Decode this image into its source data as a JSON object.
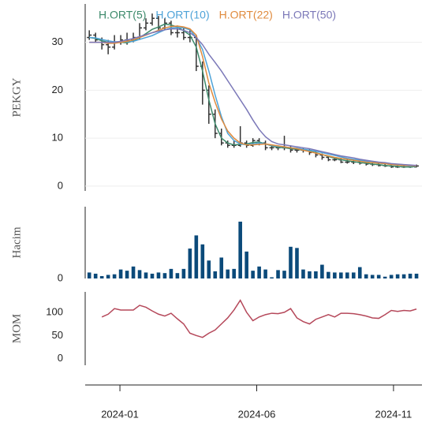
{
  "chart_data": [
    {
      "type": "ohlc",
      "ylabel": "PEKGY",
      "ylim": [
        -1,
        38
      ],
      "yticks": [
        0,
        10,
        20,
        30
      ],
      "grid": true,
      "legend": "top",
      "ohlc_color": "#333333",
      "open": [
        31,
        31.5,
        30.5,
        29.5,
        29,
        30,
        30.5,
        30.5,
        31,
        33,
        34,
        35,
        33,
        34,
        32,
        32,
        31,
        31,
        25,
        20,
        15,
        11,
        9,
        8.5,
        8.5,
        9,
        8.5,
        9.5,
        9,
        8,
        8,
        8,
        8,
        7.5,
        7.5,
        7.5,
        7,
        6.5,
        6,
        5.5,
        5.5,
        5,
        5,
        5,
        4.8,
        4.6,
        4.5,
        4.3,
        4.2,
        4,
        4,
        4,
        4
      ],
      "high": [
        32.5,
        32,
        31,
        30.5,
        31.5,
        31.5,
        32,
        32,
        34,
        35,
        36,
        35.5,
        35,
        34.5,
        33.5,
        33,
        32.5,
        31.5,
        26,
        21,
        16,
        12,
        9.5,
        9.5,
        12.5,
        9.5,
        10,
        10,
        9.5,
        8.5,
        8.5,
        10.5,
        8.5,
        8,
        8,
        7.8,
        7.2,
        6.8,
        6.2,
        6,
        5.8,
        5.5,
        5.4,
        5.2,
        5,
        4.9,
        4.8,
        4.6,
        4.5,
        4.3,
        4.3,
        4.3,
        4.5
      ],
      "low": [
        30.5,
        30,
        28.5,
        27.5,
        28.5,
        29.5,
        29.5,
        30,
        30.5,
        32.5,
        33.5,
        32.5,
        32.5,
        31.5,
        31,
        30.5,
        30,
        24,
        17,
        13,
        10,
        8.5,
        8,
        8,
        8.2,
        8,
        8.2,
        8.5,
        7.5,
        7.5,
        7.5,
        7.5,
        7,
        7,
        7,
        6.5,
        6,
        5.5,
        5.2,
        5.2,
        4.8,
        4.7,
        4.6,
        4.5,
        4.3,
        4.2,
        4.1,
        4,
        3.8,
        3.8,
        3.8,
        3.8,
        3.9
      ],
      "close": [
        31.5,
        30.5,
        29.5,
        29,
        30,
        30.5,
        30.5,
        31,
        33,
        34,
        35,
        33,
        34,
        32,
        32,
        31,
        31,
        25,
        20,
        15,
        11,
        9,
        8.5,
        8.5,
        9,
        8.5,
        9.5,
        9,
        8,
        8,
        8,
        8,
        7.5,
        7.5,
        7.5,
        7,
        6.5,
        6,
        5.5,
        5.5,
        5,
        5,
        5,
        4.8,
        4.6,
        4.5,
        4.3,
        4.2,
        4,
        4,
        4,
        4,
        4.2
      ],
      "series": [
        {
          "name": "H.ORT(5)",
          "color": "#3d8a6b",
          "values": [
            31,
            30.8,
            30.3,
            30,
            30,
            30,
            29.9,
            30.3,
            31,
            31.8,
            32.7,
            33.2,
            33.8,
            33.6,
            33.2,
            32.4,
            31.5,
            29,
            24,
            18,
            13,
            10,
            9,
            8.6,
            8.7,
            8.8,
            9.1,
            9.2,
            8.8,
            8.4,
            8.1,
            8,
            7.8,
            7.7,
            7.5,
            7.3,
            7,
            6.6,
            6.2,
            5.8,
            5.5,
            5.3,
            5.1,
            4.9,
            4.8,
            4.6,
            4.5,
            4.3,
            4.2,
            4.1,
            4,
            4,
            4.1
          ]
        },
        {
          "name": "H.ORT(10)",
          "color": "#4ea3d8",
          "values": [
            31,
            30.9,
            30.6,
            30.3,
            30.1,
            30.1,
            30.1,
            30.2,
            30.6,
            31,
            31.4,
            32,
            32.6,
            33,
            33.1,
            33,
            32.6,
            31,
            28.5,
            24,
            19,
            14.5,
            11,
            9.5,
            8.8,
            8.6,
            8.8,
            9,
            8.8,
            8.5,
            8.3,
            8.2,
            8,
            7.9,
            7.7,
            7.5,
            7.3,
            7,
            6.7,
            6.4,
            6.1,
            5.8,
            5.6,
            5.4,
            5.2,
            5,
            4.8,
            4.7,
            4.5,
            4.4,
            4.3,
            4.2,
            4.2
          ]
        },
        {
          "name": "H.ORT(22)",
          "color": "#e08b3e",
          "values": [
            30,
            30,
            30,
            29.8,
            29.8,
            30,
            30.2,
            30.5,
            31,
            31.5,
            32,
            32.5,
            33,
            33.3,
            33.4,
            33.2,
            32.8,
            31.5,
            27,
            21.5,
            17.5,
            14,
            11.5,
            10,
            9,
            8.6,
            8.6,
            8.7,
            8.8,
            8.6,
            8.4,
            8.2,
            8,
            7.8,
            7.5,
            7.2,
            6.9,
            6.6,
            6.3,
            6,
            5.8,
            5.6,
            5.4,
            5.2,
            5,
            4.9,
            4.8,
            4.7,
            4.5,
            4.4,
            4.3,
            4.3,
            4.2
          ]
        },
        {
          "name": "H.ORT(50)",
          "color": "#7b78b8",
          "values": [
            30,
            30,
            30,
            30,
            30,
            30.2,
            30.5,
            30.8,
            31.2,
            31.6,
            32,
            32.3,
            32.6,
            32.8,
            32.8,
            32.5,
            32,
            31,
            29.5,
            27.5,
            25.8,
            24,
            22,
            20,
            18,
            16,
            13.8,
            11.8,
            10.3,
            9.3,
            8.8,
            8.6,
            8.4,
            8.2,
            8,
            7.8,
            7.5,
            7.2,
            6.9,
            6.6,
            6.3,
            6.1,
            5.9,
            5.6,
            5.4,
            5.2,
            5,
            4.9,
            4.7,
            4.6,
            4.5,
            4.4,
            4.3
          ]
        }
      ]
    },
    {
      "type": "bar",
      "ylabel": "Hacim",
      "ylim": [
        0,
        12
      ],
      "yticks": [
        0
      ],
      "color": "#0b4a7a",
      "values": [
        1,
        0.8,
        0.4,
        0.6,
        0.7,
        1.5,
        1.3,
        2,
        1.4,
        1,
        0.8,
        1,
        0.9,
        1.6,
        0.9,
        1.6,
        5,
        7.2,
        5.7,
        3,
        1.2,
        3.5,
        1.5,
        1.6,
        9.5,
        4.5,
        1.3,
        2,
        1.5,
        0.2,
        1.4,
        1.3,
        5.3,
        5.1,
        1.5,
        1.2,
        1.2,
        2.3,
        1.1,
        1,
        1,
        1,
        1,
        1.9,
        0.7,
        0.6,
        0.6,
        0.3,
        0.6,
        0.7,
        0.7,
        0.8,
        0.8
      ]
    },
    {
      "type": "line",
      "ylabel": "MOM",
      "ylim": [
        -14,
        144
      ],
      "yticks": [
        0,
        50,
        100
      ],
      "color": "#b5485a",
      "values": [
        null,
        null,
        90,
        96,
        108,
        105,
        105,
        105,
        115,
        111,
        103,
        96,
        92,
        98,
        86,
        75,
        55,
        50,
        46,
        55,
        62,
        75,
        88,
        105,
        126,
        100,
        82,
        90,
        95,
        98,
        97,
        100,
        108,
        88,
        80,
        75,
        85,
        90,
        95,
        90,
        98,
        98,
        97,
        95,
        92,
        88,
        87,
        95,
        104,
        102,
        104,
        103,
        107
      ],
      "x": [
        -1.12,
        -0.89,
        -0.66,
        -0.43,
        -0.2,
        0.03,
        0.26,
        0.49,
        0.72,
        0.95,
        1.18,
        1.41,
        1.64,
        1.87,
        2.1,
        2.33,
        2.56,
        2.79,
        3.02,
        3.25,
        3.48,
        3.71,
        3.94,
        4.17,
        4.4,
        4.63,
        4.86,
        5.09,
        5.32,
        5.55,
        5.78,
        6.01,
        6.24,
        6.47,
        6.7,
        6.93,
        7.16,
        7.39,
        7.62,
        7.85,
        8.08,
        8.31,
        8.54,
        8.77,
        9.0,
        9.23,
        9.46,
        9.69,
        9.92,
        10.15,
        10.38,
        10.61,
        10.84
      ],
      "xlim": [
        -1.27,
        11.04
      ],
      "xticks": [
        {
          "value": 0,
          "label": "2024-01"
        },
        {
          "value": 5,
          "label": "2024-06"
        },
        {
          "value": 10,
          "label": "2024-11"
        }
      ]
    }
  ]
}
